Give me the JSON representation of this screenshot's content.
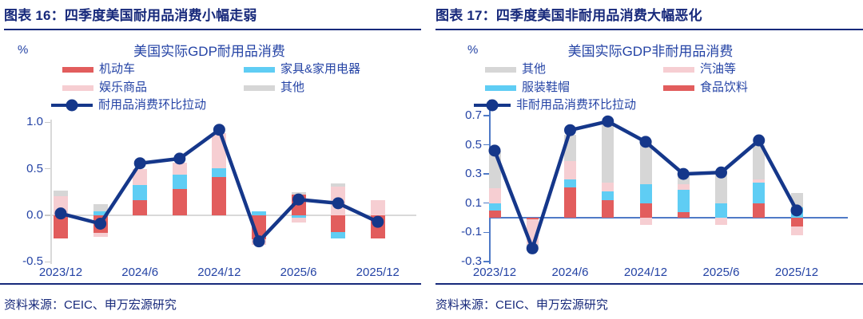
{
  "page": {
    "source_note": "资料来源：CEIC、申万宏源研究"
  },
  "charts": [
    {
      "header": "图表 16：四季度美国耐用品消费小幅走弱",
      "title": "美国实际GDP耐用品消费",
      "unit": "%",
      "source": "资料来源：CEIC、申万宏源研究",
      "chart_data": {
        "type": "bar",
        "subtype": "stacked-bars-with-line",
        "x_categories": [
          "2023/12",
          "2024/3",
          "2024/6",
          "2024/9",
          "2024/12",
          "2025/3",
          "2025/6",
          "2025/9",
          "2025/12"
        ],
        "x_tick_labels": [
          "2023/12",
          "2024/6",
          "2024/12",
          "2025/6",
          "2025/12"
        ],
        "ylim": [
          -0.5,
          1.0
        ],
        "yticks": [
          {
            "label": "1.0",
            "v": 1.0
          },
          {
            "label": "0.5",
            "v": 0.5
          },
          {
            "label": "0.0",
            "v": 0.0
          },
          {
            "label": "-0.5",
            "v": -0.5
          }
        ],
        "grid": "zero-line-only",
        "legend_position": "top",
        "bar_series": [
          {
            "name": "机动车",
            "color": "#e25d5d",
            "values": [
              -0.25,
              -0.19,
              0.16,
              0.28,
              0.41,
              -0.26,
              0.22,
              -0.18,
              -0.25
            ]
          },
          {
            "name": "家具&家用电器",
            "color": "#5fcdf4",
            "values": [
              0,
              0.04,
              0.17,
              0.16,
              0.1,
              0.04,
              -0.03,
              -0.07,
              0
            ]
          },
          {
            "name": "娱乐商品",
            "color": "#f6ced2",
            "values": [
              0.21,
              -0.04,
              0.17,
              0.13,
              0.37,
              -0.06,
              -0.05,
              0.31,
              0.16
            ]
          },
          {
            "name": "其他",
            "color": "#d6d6d6",
            "values": [
              0.06,
              0.08,
              0,
              0,
              0,
              0,
              0.03,
              0.03,
              0
            ]
          }
        ],
        "line_series": {
          "name": "耐用品消费环比拉动",
          "color": "#15378a",
          "values": [
            0.02,
            -0.09,
            0.56,
            0.61,
            0.92,
            -0.28,
            0.17,
            0.13,
            -0.07
          ]
        },
        "legend_rows": [
          [
            0,
            1
          ],
          [
            2,
            3
          ]
        ]
      }
    },
    {
      "header": "图表 17：四季度美国非耐用品消费大幅恶化",
      "title": "美国实际GDP非耐用品消费",
      "unit": "%",
      "source": "资料来源：CEIC、申万宏源研究",
      "chart_data": {
        "type": "bar",
        "subtype": "stacked-bars-with-line",
        "x_categories": [
          "2023/12",
          "2024/3",
          "2024/6",
          "2024/9",
          "2024/12",
          "2025/3",
          "2025/6",
          "2025/9",
          "2025/12"
        ],
        "x_tick_labels": [
          "2023/12",
          "2024/6",
          "2024/12",
          "2025/6",
          "2025/12"
        ],
        "ylim": [
          -0.3,
          0.7
        ],
        "yticks": [
          {
            "label": "0.7",
            "v": 0.7
          },
          {
            "label": "0.5",
            "v": 0.5
          },
          {
            "label": "0.3",
            "v": 0.3
          },
          {
            "label": "0.1",
            "v": 0.1
          },
          {
            "label": "-0.1",
            "v": -0.1
          },
          {
            "label": "-0.3",
            "v": -0.3
          }
        ],
        "grid": "zero-line-only",
        "legend_position": "top",
        "bar_series": [
          {
            "name": "食品饮料",
            "color": "#e25d5d",
            "values": [
              0.05,
              -0.01,
              0.21,
              0.12,
              0.1,
              0.04,
              0,
              0.1,
              -0.06
            ]
          },
          {
            "name": "服装鞋帽",
            "color": "#5fcdf4",
            "values": [
              0.05,
              0,
              0.05,
              0.06,
              0.13,
              0.15,
              0.1,
              0.14,
              0.07
            ]
          },
          {
            "name": "汽油等",
            "color": "#f6ced2",
            "values": [
              0.1,
              -0.17,
              0.13,
              0.06,
              -0.05,
              0.04,
              -0.05,
              0.02,
              -0.06
            ]
          },
          {
            "name": "其他",
            "color": "#d6d6d6",
            "values": [
              0.26,
              -0.04,
              0.18,
              0.42,
              0.3,
              0.06,
              0.21,
              0.24,
              0.1
            ]
          }
        ],
        "line_series": {
          "name": "非耐用品消费环比拉动",
          "color": "#15378a",
          "values": [
            0.46,
            -0.21,
            0.6,
            0.66,
            0.52,
            0.3,
            0.31,
            0.53,
            0.05
          ]
        },
        "legend_rows": [
          [
            3,
            2
          ],
          [
            1,
            0
          ]
        ]
      }
    }
  ]
}
